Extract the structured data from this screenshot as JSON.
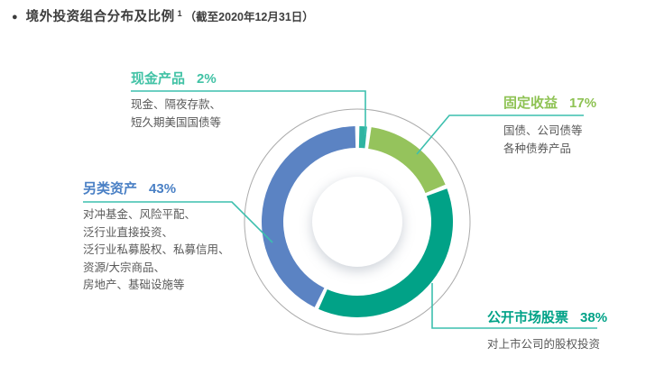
{
  "title": {
    "bullet": "●",
    "text": "境外投资组合分布及比例",
    "footnote": "1",
    "date_note": "（截至2020年12月31日）"
  },
  "colors": {
    "leader": "#3cbfae",
    "ring_outline": "#ababab",
    "title_text": "#3d3d3d",
    "desc_text": "#595959",
    "background": "#ffffff"
  },
  "chart_data": {
    "type": "pie",
    "subtype": "donut",
    "title": "境外投资组合分布及比例（截至2020年12月31日）",
    "unit": "%",
    "start_angle_deg": 0,
    "direction": "clockwise",
    "total": 100,
    "segments": [
      {
        "name": "cash",
        "label": "现金产品",
        "value": 2,
        "pct_label": "2%",
        "color": "#2eb4a1",
        "label_color": "#41c2a5",
        "desc": [
          "现金、隔夜存款、",
          "短久期美国国债等"
        ]
      },
      {
        "name": "fixed-income",
        "label": "固定收益",
        "value": 17,
        "pct_label": "17%",
        "color": "#95c35c",
        "label_color": "#8ec253",
        "desc": [
          "国债、公司债等",
          "各种债券产品"
        ]
      },
      {
        "name": "public-market-equities",
        "label": "公开市场股票",
        "value": 38,
        "pct_label": "38%",
        "color": "#01a287",
        "label_color": "#00a287",
        "desc": [
          "对上市公司的股权投资"
        ]
      },
      {
        "name": "alternatives",
        "label": "另类资产",
        "value": 43,
        "pct_label": "43%",
        "color": "#5b83c3",
        "label_color": "#4a80c5",
        "desc": [
          "对冲基金、风险平配、",
          "泛行业直接投资、",
          "泛行业私募股权、私募信用、",
          "资源/大宗商品、",
          "房地产、基础设施等"
        ]
      }
    ]
  }
}
